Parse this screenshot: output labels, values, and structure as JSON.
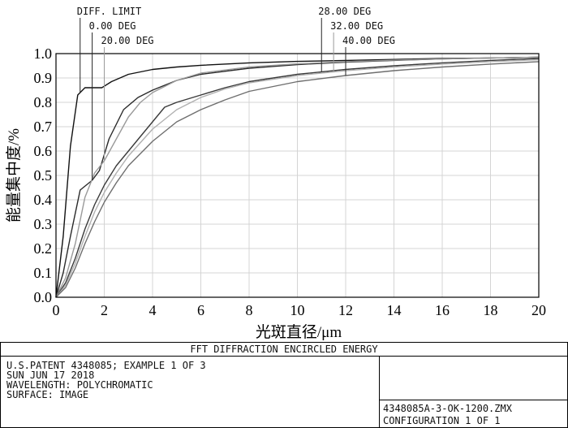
{
  "chart_data": {
    "type": "line",
    "xlabel": "光斑直径/μm",
    "ylabel": "能量集中度/%",
    "xlim": [
      0,
      20
    ],
    "ylim": [
      0,
      1.0
    ],
    "x_ticks": [
      "0",
      "2",
      "4",
      "6",
      "8",
      "10",
      "12",
      "14",
      "16",
      "18",
      "20"
    ],
    "y_ticks": [
      "0.0",
      "0.1",
      "0.2",
      "0.3",
      "0.4",
      "0.5",
      "0.6",
      "0.7",
      "0.8",
      "0.9",
      "1.0"
    ],
    "grid": true,
    "annotations": [
      {
        "text": "DIFF. LIMIT",
        "x": 1.0
      },
      {
        "text": "0.00 DEG",
        "x": 1.5
      },
      {
        "text": "20.00 DEG",
        "x": 2.0
      },
      {
        "text": "28.00 DEG",
        "x": 11.0
      },
      {
        "text": "32.00 DEG",
        "x": 11.5
      },
      {
        "text": "40.00 DEG",
        "x": 12.0
      }
    ],
    "series": [
      {
        "name": "DIFF. LIMIT",
        "color": "#111111",
        "x": [
          0,
          0.3,
          0.6,
          0.9,
          1.2,
          1.9,
          2.3,
          3,
          4,
          5,
          6,
          8,
          10,
          12,
          14,
          16,
          18,
          20
        ],
        "y": [
          0,
          0.25,
          0.62,
          0.83,
          0.86,
          0.86,
          0.885,
          0.915,
          0.935,
          0.945,
          0.952,
          0.962,
          0.968,
          0.972,
          0.976,
          0.98,
          0.982,
          0.985
        ]
      },
      {
        "name": "0.00 DEG",
        "color": "#2a2a2a",
        "x": [
          0,
          0.3,
          0.6,
          1.0,
          1.5,
          1.8,
          2.2,
          2.8,
          3.4,
          4,
          5,
          6,
          8,
          10,
          12,
          14,
          16,
          18,
          20
        ],
        "y": [
          0,
          0.1,
          0.25,
          0.44,
          0.48,
          0.52,
          0.65,
          0.77,
          0.82,
          0.85,
          0.89,
          0.915,
          0.94,
          0.955,
          0.965,
          0.972,
          0.978,
          0.982,
          0.985
        ]
      },
      {
        "name": "20.00 DEG",
        "color": "#9a9a9a",
        "x": [
          0,
          0.4,
          0.8,
          1.2,
          1.6,
          2.0,
          2.5,
          3,
          3.5,
          4,
          5,
          6,
          8,
          10,
          12,
          14,
          16,
          18,
          20
        ],
        "y": [
          0,
          0.08,
          0.22,
          0.41,
          0.51,
          0.56,
          0.65,
          0.74,
          0.8,
          0.84,
          0.89,
          0.92,
          0.945,
          0.958,
          0.967,
          0.973,
          0.978,
          0.982,
          0.985
        ]
      },
      {
        "name": "28.00 DEG",
        "color": "#3a3a3a",
        "x": [
          0,
          0.4,
          0.8,
          1.2,
          1.6,
          2.0,
          2.5,
          3,
          3.5,
          4,
          4.5,
          5,
          6,
          7,
          8,
          10,
          12,
          14,
          16,
          18,
          20
        ],
        "y": [
          0,
          0.06,
          0.16,
          0.28,
          0.38,
          0.46,
          0.54,
          0.6,
          0.66,
          0.72,
          0.78,
          0.8,
          0.83,
          0.86,
          0.885,
          0.915,
          0.935,
          0.95,
          0.962,
          0.972,
          0.98
        ]
      },
      {
        "name": "32.00 DEG",
        "color": "#b0b0b0",
        "x": [
          0,
          0.4,
          0.8,
          1.2,
          1.6,
          2.0,
          2.5,
          3,
          4,
          5,
          6,
          7,
          8,
          10,
          12,
          14,
          16,
          18,
          20
        ],
        "y": [
          0,
          0.05,
          0.14,
          0.25,
          0.35,
          0.43,
          0.51,
          0.58,
          0.69,
          0.77,
          0.82,
          0.855,
          0.88,
          0.91,
          0.93,
          0.945,
          0.957,
          0.967,
          0.975
        ]
      },
      {
        "name": "40.00 DEG",
        "color": "#6e6e6e",
        "x": [
          0,
          0.4,
          0.8,
          1.2,
          1.6,
          2.0,
          2.5,
          3,
          4,
          5,
          6,
          7,
          8,
          10,
          12,
          14,
          16,
          18,
          20
        ],
        "y": [
          0,
          0.04,
          0.12,
          0.22,
          0.31,
          0.39,
          0.47,
          0.54,
          0.64,
          0.72,
          0.77,
          0.81,
          0.845,
          0.885,
          0.91,
          0.93,
          0.945,
          0.957,
          0.967
        ]
      }
    ]
  },
  "footer": {
    "title": "FFT DIFFRACTION ENCIRCLED ENERGY",
    "lines": [
      "U.S.PATENT 4348085; EXAMPLE 1 OF 3",
      "SUN JUN 17 2018",
      "WAVELENGTH: POLYCHROMATIC",
      "SURFACE: IMAGE"
    ],
    "file": "4348085A-3-OK-1200.ZMX",
    "config": "CONFIGURATION 1 OF 1"
  }
}
